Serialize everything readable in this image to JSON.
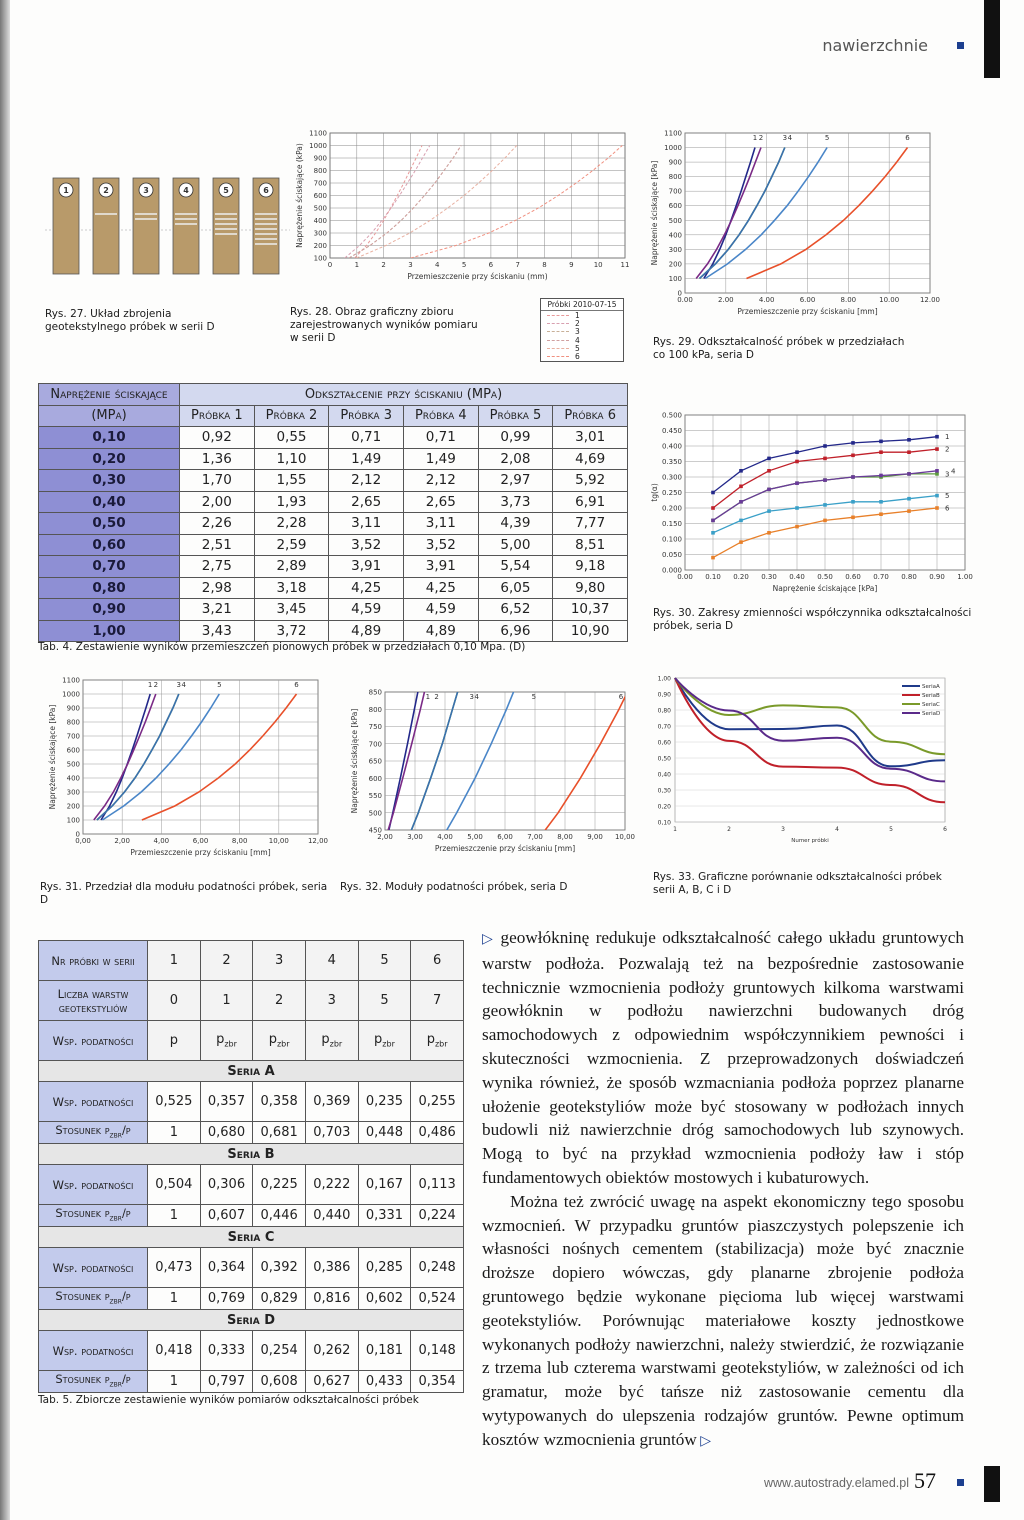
{
  "header": {
    "section": "nawierzchnie"
  },
  "footer": {
    "url": "www.autostrady.elamed.pl",
    "page": "57"
  },
  "fig27": {
    "samples": [
      "1",
      "2",
      "3",
      "4",
      "5",
      "6"
    ],
    "caption": "Rys. 27. Układ zbrojenia geotekstylnego próbek w serii D"
  },
  "fig28": {
    "caption": "Rys. 28. Obraz graficzny zbioru zarejestrowanych wyników pomiaru w serii D",
    "xlabel": "Przemieszczenie przy ściskaniu (mm)",
    "ylabel": "Naprężenie ściskające (kPa)",
    "xlim": [
      0,
      11
    ],
    "ylim": [
      0.1,
      1.1
    ],
    "xticks": [
      0,
      1,
      2,
      3,
      4,
      5,
      6,
      7,
      8,
      9,
      10,
      11
    ],
    "yticks": [
      {
        "value": 0.1,
        "label": "100"
      },
      {
        "value": 0.2,
        "label": "200"
      },
      {
        "value": 0.3,
        "label": "300"
      },
      {
        "value": 0.4,
        "label": "400"
      },
      {
        "value": 0.5,
        "label": "500"
      },
      {
        "value": 0.6,
        "label": "600"
      },
      {
        "value": 0.7,
        "label": "700"
      },
      {
        "value": 0.8,
        "label": "800"
      },
      {
        "value": 0.9,
        "label": "900"
      },
      {
        "value": 1.0,
        "label": "1000"
      },
      {
        "value": 1.1,
        "label": "1100"
      }
    ],
    "legend_title": "Próbki 2010-07-15",
    "legend": [
      "1",
      "2",
      "3",
      "4",
      "5",
      "6"
    ],
    "colors": [
      "#e89a9a",
      "#d8a0b0",
      "#c8b098",
      "#d0a0a0",
      "#e8b0a0",
      "#f09080"
    ]
  },
  "fig29": {
    "caption": "Rys. 29. Odkształcalność próbek w przedziałach co 100 kPa, seria D",
    "xlabel": "Przemieszczenie przy ściskaniu [mm]",
    "ylabel": "Naprężenie ściskające [kPa]",
    "xlim": [
      0,
      12
    ],
    "ylim": [
      0,
      1.1
    ],
    "xticks": [
      {
        "value": 0,
        "label": "0.00"
      },
      {
        "value": 2,
        "label": "2.00"
      },
      {
        "value": 4,
        "label": "4.00"
      },
      {
        "value": 6,
        "label": "6.00"
      },
      {
        "value": 8,
        "label": "8.00"
      },
      {
        "value": 10,
        "label": "10.00"
      },
      {
        "value": 12,
        "label": "12.00"
      }
    ],
    "yticks": [
      0,
      {
        "value": 0.1,
        "label": "100"
      },
      {
        "value": 0.2,
        "label": "200"
      },
      {
        "value": 0.3,
        "label": "300"
      },
      {
        "value": 0.4,
        "label": "400"
      },
      {
        "value": 0.5,
        "label": "500"
      },
      {
        "value": 0.6,
        "label": "600"
      },
      {
        "value": 0.7,
        "label": "700"
      },
      {
        "value": 0.8,
        "label": "800"
      },
      {
        "value": 0.9,
        "label": "900"
      },
      {
        "value": 1.0,
        "label": "1000"
      },
      {
        "value": 1.1,
        "label": "1100"
      }
    ],
    "curve_labels": [
      "1",
      "2",
      "3",
      "4",
      "5",
      "6"
    ],
    "colors": [
      "#23288a",
      "#7a2a86",
      "#5c9a3c",
      "#3a70b0",
      "#4a86c8",
      "#e8502a"
    ]
  },
  "tab4": {
    "corner": [
      "Naprężenie ściskające",
      "(MPa)"
    ],
    "group": "Odkształcenie przy ściskaniu (MPa)",
    "columns": [
      "Próbka 1",
      "Próbka 2",
      "Próbka 3",
      "Próbka 4",
      "Próbka 5",
      "Próbka 6"
    ],
    "rows": [
      {
        "stress": "0,10",
        "values": [
          "0,92",
          "0,55",
          "0,71",
          "0,71",
          "0,99",
          "3,01"
        ]
      },
      {
        "stress": "0,20",
        "values": [
          "1,36",
          "1,10",
          "1,49",
          "1,49",
          "2,08",
          "4,69"
        ]
      },
      {
        "stress": "0,30",
        "values": [
          "1,70",
          "1,55",
          "2,12",
          "2,12",
          "2,97",
          "5,92"
        ]
      },
      {
        "stress": "0,40",
        "values": [
          "2,00",
          "1,93",
          "2,65",
          "2,65",
          "3,73",
          "6,91"
        ]
      },
      {
        "stress": "0,50",
        "values": [
          "2,26",
          "2,28",
          "3,11",
          "3,11",
          "4,39",
          "7,77"
        ]
      },
      {
        "stress": "0,60",
        "values": [
          "2,51",
          "2,59",
          "3,52",
          "3,52",
          "5,00",
          "8,51"
        ]
      },
      {
        "stress": "0,70",
        "values": [
          "2,75",
          "2,89",
          "3,91",
          "3,91",
          "5,54",
          "9,18"
        ]
      },
      {
        "stress": "0,80",
        "values": [
          "2,98",
          "3,18",
          "4,25",
          "4,25",
          "6,05",
          "9,80"
        ]
      },
      {
        "stress": "0,90",
        "values": [
          "3,21",
          "3,45",
          "4,59",
          "4,59",
          "6,52",
          "10,37"
        ]
      },
      {
        "stress": "1,00",
        "values": [
          "3,43",
          "3,72",
          "4,89",
          "4,89",
          "6,96",
          "10,90"
        ]
      }
    ],
    "caption": "Tab. 4. Zestawienie wyników przemieszczeń pionowych próbek w przedziałach 0,10 Mpa. (D)"
  },
  "fig30": {
    "caption": "Rys. 30. Zakresy zmienności współczynnika odkształcalności próbek, seria D",
    "xlabel": "Naprężenie ściskające [kPa]",
    "ylabel": "tg(α)",
    "xlim": [
      0,
      1
    ],
    "ylim": [
      0,
      0.5
    ],
    "xticks": [
      {
        "value": 0,
        "label": "0.00"
      },
      {
        "value": 0.1,
        "label": "0.10"
      },
      {
        "value": 0.2,
        "label": "0.20"
      },
      {
        "value": 0.3,
        "label": "0.30"
      },
      {
        "value": 0.4,
        "label": "0.40"
      },
      {
        "value": 0.5,
        "label": "0.50"
      },
      {
        "value": 0.6,
        "label": "0.60"
      },
      {
        "value": 0.7,
        "label": "0.70"
      },
      {
        "value": 0.8,
        "label": "0.80"
      },
      {
        "value": 0.9,
        "label": "0.90"
      },
      {
        "value": 1,
        "label": "1.00"
      }
    ],
    "yticks": [
      {
        "value": 0,
        "label": "0.000"
      },
      {
        "value": 0.05,
        "label": "0.050"
      },
      {
        "value": 0.1,
        "label": "0.100"
      },
      {
        "value": 0.15,
        "label": "0.150"
      },
      {
        "value": 0.2,
        "label": "0.200"
      },
      {
        "value": 0.25,
        "label": "0.250"
      },
      {
        "value": 0.3,
        "label": "0.300"
      },
      {
        "value": 0.35,
        "label": "0.350"
      },
      {
        "value": 0.4,
        "label": "0.400"
      },
      {
        "value": 0.45,
        "label": "0.450"
      },
      {
        "value": 0.5,
        "label": "0.500"
      }
    ],
    "x": [
      0.1,
      0.2,
      0.3,
      0.4,
      0.5,
      0.6,
      0.7,
      0.8,
      0.9
    ],
    "series": [
      {
        "name": "1",
        "color": "#23288a",
        "values": [
          0.25,
          0.32,
          0.36,
          0.38,
          0.4,
          0.41,
          0.415,
          0.42,
          0.43
        ]
      },
      {
        "name": "2",
        "color": "#c0202a",
        "values": [
          0.2,
          0.27,
          0.32,
          0.35,
          0.36,
          0.37,
          0.38,
          0.38,
          0.39
        ]
      },
      {
        "name": "3",
        "color": "#5c9a3c",
        "values": [
          0.16,
          0.22,
          0.26,
          0.28,
          0.29,
          0.3,
          0.3,
          0.31,
          0.31
        ]
      },
      {
        "name": "4",
        "color": "#6a3a9a",
        "values": [
          0.16,
          0.22,
          0.26,
          0.28,
          0.29,
          0.3,
          0.305,
          0.31,
          0.32
        ]
      },
      {
        "name": "5",
        "color": "#3aa0c8",
        "values": [
          0.12,
          0.16,
          0.19,
          0.2,
          0.21,
          0.22,
          0.22,
          0.23,
          0.24
        ]
      },
      {
        "name": "6",
        "color": "#e8802a",
        "values": [
          0.04,
          0.09,
          0.12,
          0.14,
          0.16,
          0.17,
          0.18,
          0.19,
          0.2
        ]
      }
    ]
  },
  "fig31": {
    "caption": "Rys. 31. Przedział dla modułu podatności próbek, seria D",
    "xlabel": "Przemieszczenie przy ściskaniu [mm]",
    "ylabel": "Naprężenie ściskające [kPa]",
    "xlim": [
      0,
      12
    ],
    "ylim": [
      0,
      1.1
    ],
    "xticks": [
      {
        "value": 0,
        "label": "0,00"
      },
      {
        "value": 2,
        "label": "2,00"
      },
      {
        "value": 4,
        "label": "4,00"
      },
      {
        "value": 6,
        "label": "6,00"
      },
      {
        "value": 8,
        "label": "8,00"
      },
      {
        "value": 10,
        "label": "10,00"
      },
      {
        "value": 12,
        "label": "12,00"
      }
    ],
    "yticks": [
      0,
      {
        "value": 0.1,
        "label": "100"
      },
      {
        "value": 0.2,
        "label": "200"
      },
      {
        "value": 0.3,
        "label": "300"
      },
      {
        "value": 0.4,
        "label": "400"
      },
      {
        "value": 0.5,
        "label": "500"
      },
      {
        "value": 0.6,
        "label": "600"
      },
      {
        "value": 0.7,
        "label": "700"
      },
      {
        "value": 0.8,
        "label": "800"
      },
      {
        "value": 0.9,
        "label": "900"
      },
      {
        "value": 1.0,
        "label": "1000"
      },
      {
        "value": 1.1,
        "label": "1100"
      }
    ],
    "curve_labels": [
      "1",
      "2",
      "3",
      "4",
      "5",
      "6"
    ],
    "colors": [
      "#23288a",
      "#7a2a86",
      "#5c9a3c",
      "#3a70b0",
      "#4a86c8",
      "#e8502a"
    ]
  },
  "fig32": {
    "caption": "Rys. 32. Moduły podatności próbek, seria D",
    "xlabel": "Przemieszczenie przy ściskaniu [mm]",
    "ylabel": "Naprężenie ściskające [kPa]",
    "xlim": [
      2,
      10
    ],
    "ylim": [
      0.45,
      0.85
    ],
    "xticks": [
      {
        "value": 2,
        "label": "2,00"
      },
      {
        "value": 3,
        "label": "3,00"
      },
      {
        "value": 4,
        "label": "4,00"
      },
      {
        "value": 5,
        "label": "5,00"
      },
      {
        "value": 6,
        "label": "6,00"
      },
      {
        "value": 7,
        "label": "7,00"
      },
      {
        "value": 8,
        "label": "8,00"
      },
      {
        "value": 9,
        "label": "9,00"
      },
      {
        "value": 10,
        "label": "10,00"
      }
    ],
    "yticks": [
      {
        "value": 0.45,
        "label": "450"
      },
      {
        "value": 0.5,
        "label": "500"
      },
      {
        "value": 0.55,
        "label": "550"
      },
      {
        "value": 0.6,
        "label": "600"
      },
      {
        "value": 0.65,
        "label": "650"
      },
      {
        "value": 0.7,
        "label": "700"
      },
      {
        "value": 0.75,
        "label": "750"
      },
      {
        "value": 0.8,
        "label": "800"
      },
      {
        "value": 0.85,
        "label": "850"
      }
    ],
    "curve_labels": [
      "1",
      "2",
      "3",
      "4",
      "5",
      "6"
    ],
    "colors": [
      "#23288a",
      "#7a2a86",
      "#5c9a3c",
      "#3a70b0",
      "#4a86c8",
      "#e8502a"
    ]
  },
  "fig33": {
    "caption": "Rys. 33. Graficzne porównanie odkształcalności próbek serii A, B, C i D",
    "xlabel": "Numer próbki",
    "categories": [
      "1",
      "2",
      "3",
      "4",
      "5",
      "6"
    ],
    "ylim": [
      0.1,
      1.0
    ],
    "yticks": [
      {
        "value": 0.1,
        "label": "0,10"
      },
      {
        "value": 0.2,
        "label": "0,20"
      },
      {
        "value": 0.3,
        "label": "0,30"
      },
      {
        "value": 0.4,
        "label": "0,40"
      },
      {
        "value": 0.5,
        "label": "0,50"
      },
      {
        "value": 0.6,
        "label": "0,60"
      },
      {
        "value": 0.7,
        "label": "0,70"
      },
      {
        "value": 0.8,
        "label": "0,80"
      },
      {
        "value": 0.9,
        "label": "0,90"
      },
      {
        "value": 1.0,
        "label": "1,00"
      }
    ],
    "legend": [
      "SeriaA",
      "SeriaB",
      "SeriaC",
      "SeriaD"
    ],
    "colors": [
      "#1f3a8a",
      "#c0202a",
      "#7a9a2a",
      "#5a2a8a"
    ]
  },
  "tab5": {
    "head": [
      {
        "label": "Nr próbki w serii",
        "values": [
          "1",
          "2",
          "3",
          "4",
          "5",
          "6"
        ]
      },
      {
        "label": "Liczba warstw geotekstyliów",
        "values": [
          "0",
          "1",
          "2",
          "3",
          "5",
          "7"
        ]
      },
      {
        "label": "Wsp. podatności",
        "values": [
          {
            "t": "p"
          },
          {
            "t": "p",
            "sub": "zbr"
          },
          {
            "t": "p",
            "sub": "zbr"
          },
          {
            "t": "p",
            "sub": "zbr"
          },
          {
            "t": "p",
            "sub": "zbr"
          },
          {
            "t": "p",
            "sub": "zbr"
          }
        ]
      }
    ],
    "series": [
      {
        "name": "Seria A",
        "coef": {
          "label": "Wsp. podatności",
          "values": [
            "0,525",
            "0,357",
            "0,358",
            "0,369",
            "0,235",
            "0,255"
          ]
        },
        "ratio": {
          "label": {
            "t": "Stosunek p",
            "sub": "zbr",
            "after": "/p"
          },
          "values": [
            "1",
            "0,680",
            "0,681",
            "0,703",
            "0,448",
            "0,486"
          ]
        }
      },
      {
        "name": "Seria B",
        "coef": {
          "label": "Wsp. podatności",
          "values": [
            "0,504",
            "0,306",
            "0,225",
            "0,222",
            "0,167",
            "0,113"
          ]
        },
        "ratio": {
          "label": {
            "t": "Stosunek p",
            "sub": "zbr",
            "after": "/p"
          },
          "values": [
            "1",
            "0,607",
            "0,446",
            "0,440",
            "0,331",
            "0,224"
          ]
        }
      },
      {
        "name": "Seria C",
        "coef": {
          "label": "Wsp. podatności",
          "values": [
            "0,473",
            "0,364",
            "0,392",
            "0,386",
            "0,285",
            "0,248"
          ]
        },
        "ratio": {
          "label": {
            "t": "Stosunek p",
            "sub": "zbr",
            "after": "/p"
          },
          "values": [
            "1",
            "0,769",
            "0,829",
            "0,816",
            "0,602",
            "0,524"
          ]
        }
      },
      {
        "name": "Seria D",
        "coef": {
          "label": "Wsp. podatności",
          "values": [
            "0,418",
            "0,333",
            "0,254",
            "0,262",
            "0,181",
            "0,148"
          ]
        },
        "ratio": {
          "label": {
            "t": "Stosunek p",
            "sub": "zbr",
            "after": "/p"
          },
          "values": [
            "1",
            "0,797",
            "0,608",
            "0,627",
            "0,433",
            "0,354"
          ]
        }
      }
    ],
    "caption": "Tab. 5. Zbiorcze zestawienie wyników pomiarów odkształcalności próbek"
  },
  "body": {
    "paragraphs": [
      "geowłókninę redukuje odkształcalność całego układu gruntowych warstw podłoża. Pozwalają też na bezpośrednie zastosowanie technicznie wzmocnienia podłoży gruntowych kilkoma warstwami geowłóknin w podłożu nawierzchni budowanych dróg samochodowych z odpowiednim współczynnikiem pewności i skuteczności wzmocnienia. Z przeprowadzonych doświadczeń wynika również, że sposób wzmacniania podłoża poprzez planarne ułożenie geotekstyliów może być stosowany w podłożach innych budowli niż nawierzchnie dróg samochodowych lub szynowych. Mogą to być na przykład wzmocnienia podłoży ław i stóp fundamentowych obiektów mostowych i kubaturowych.",
      "Można też zwrócić uwagę na aspekt ekonomiczny tego sposobu wzmocnień. W przypadku gruntów piaszczystych polepszenie ich własności nośnych cementem (stabilizacja) może być znacznie droższe dopiero wówczas, gdy planarne zbrojenie podłoża gruntowego będzie wykonane pięcioma lub więcej warstwami geotekstyliów. Porównując materiałowe koszty jednostkowe wykonanych podłoży nawierzchni, należy stwierdzić, że rozwiązanie z trzema lub czterema warstwami geotekstyliów, w zależności od ich gramatur, może być tańsze niż zastosowanie cementu dla wytypowanych do ulepszenia rodzajów gruntów. Pewne optimum kosztów wzmocnienia gruntów"
    ]
  }
}
